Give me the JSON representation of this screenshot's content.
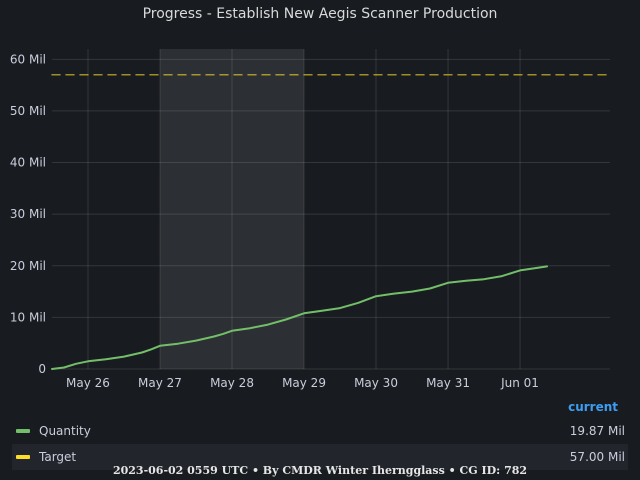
{
  "panel": {
    "title": "Progress - Establish New Aegis Scanner Production",
    "footer": "2023-06-02 0559 UTC • By CMDR Winter Iherngglass • CG ID: 782"
  },
  "legend": {
    "header": "current",
    "items": [
      {
        "name": "Quantity",
        "value": "19.87 Mil",
        "color": "#73bf69"
      },
      {
        "name": "Target",
        "value": "57.00 Mil",
        "color": "#fade2a"
      }
    ]
  },
  "chart_data": {
    "type": "line",
    "y_ticks": [
      {
        "value": 0,
        "label": "0"
      },
      {
        "value": 10,
        "label": "10 Mil"
      },
      {
        "value": 20,
        "label": "20 Mil"
      },
      {
        "value": 30,
        "label": "30 Mil"
      },
      {
        "value": 40,
        "label": "40 Mil"
      },
      {
        "value": 50,
        "label": "50 Mil"
      },
      {
        "value": 60,
        "label": "60 Mil"
      }
    ],
    "x_ticks": [
      {
        "value": "2023-05-26",
        "label": "May 26"
      },
      {
        "value": "2023-05-27",
        "label": "May 27"
      },
      {
        "value": "2023-05-28",
        "label": "May 28"
      },
      {
        "value": "2023-05-29",
        "label": "May 29"
      },
      {
        "value": "2023-05-30",
        "label": "May 30"
      },
      {
        "value": "2023-05-31",
        "label": "May 31"
      },
      {
        "value": "2023-06-01",
        "label": "Jun 01"
      }
    ],
    "xlim": [
      "2023-05-25 12:00",
      "2023-06-02 05:59"
    ],
    "ylim": [
      0,
      62
    ],
    "grid": true,
    "highlight_range": [
      "2023-05-27",
      "2023-05-29"
    ],
    "series": [
      {
        "name": "Quantity",
        "color": "#73bf69",
        "points": [
          [
            "2023-05-25 12:00",
            0
          ],
          [
            "2023-05-25 16:00",
            0.3
          ],
          [
            "2023-05-25 20:00",
            1.0
          ],
          [
            "2023-05-26 00:00",
            1.5
          ],
          [
            "2023-05-26 06:00",
            1.9
          ],
          [
            "2023-05-26 12:00",
            2.4
          ],
          [
            "2023-05-26 18:00",
            3.2
          ],
          [
            "2023-05-26 21:00",
            3.8
          ],
          [
            "2023-05-27 00:00",
            4.5
          ],
          [
            "2023-05-27 06:00",
            4.9
          ],
          [
            "2023-05-27 12:00",
            5.5
          ],
          [
            "2023-05-27 18:00",
            6.3
          ],
          [
            "2023-05-27 21:00",
            6.8
          ],
          [
            "2023-05-28 00:00",
            7.4
          ],
          [
            "2023-05-28 06:00",
            7.9
          ],
          [
            "2023-05-28 12:00",
            8.6
          ],
          [
            "2023-05-28 18:00",
            9.6
          ],
          [
            "2023-05-29 00:00",
            10.8
          ],
          [
            "2023-05-29 06:00",
            11.3
          ],
          [
            "2023-05-29 12:00",
            11.8
          ],
          [
            "2023-05-29 18:00",
            12.8
          ],
          [
            "2023-05-30 00:00",
            14.1
          ],
          [
            "2023-05-30 06:00",
            14.6
          ],
          [
            "2023-05-30 12:00",
            15.0
          ],
          [
            "2023-05-30 18:00",
            15.6
          ],
          [
            "2023-05-31 00:00",
            16.7
          ],
          [
            "2023-05-31 06:00",
            17.1
          ],
          [
            "2023-05-31 12:00",
            17.4
          ],
          [
            "2023-05-31 18:00",
            18.0
          ],
          [
            "2023-06-01 00:00",
            19.1
          ],
          [
            "2023-06-01 06:00",
            19.6
          ],
          [
            "2023-06-01 09:00",
            19.87
          ]
        ]
      },
      {
        "name": "Target",
        "color": "#fade2a",
        "dashed": true,
        "points": [
          [
            "2023-05-25 12:00",
            57.0
          ],
          [
            "2023-06-02 05:59",
            57.0
          ]
        ]
      }
    ]
  }
}
